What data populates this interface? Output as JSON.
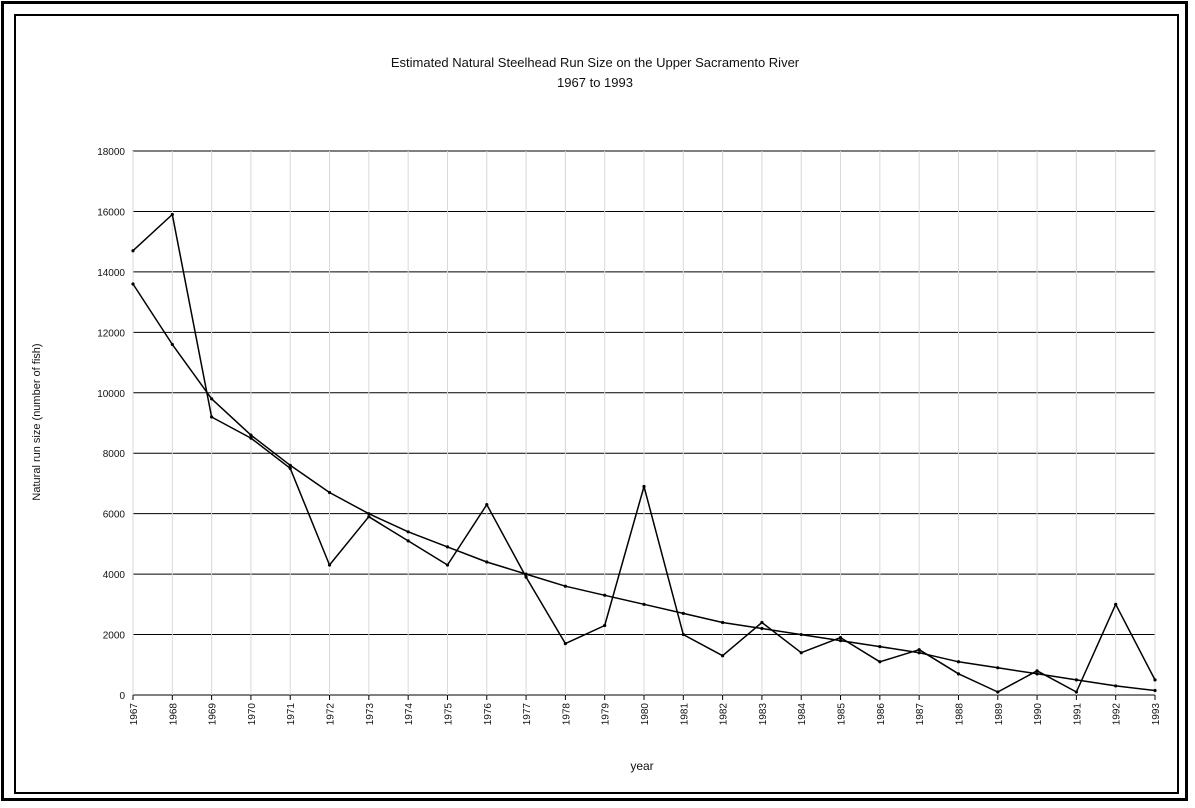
{
  "chart_data": {
    "type": "line",
    "title": "Estimated Natural Steelhead Run Size on the Upper Sacramento River",
    "subtitle": "1967 to 1993",
    "xlabel": "year",
    "ylabel": "Natural run size (number of fish)",
    "ylim": [
      0,
      18000
    ],
    "yticks": [
      0,
      2000,
      4000,
      6000,
      8000,
      10000,
      12000,
      14000,
      16000,
      18000
    ],
    "ytick_labels": [
      "0",
      "2000",
      "4000",
      "6000",
      "8000",
      "10000",
      "12000",
      "14000",
      "16000",
      "18000"
    ],
    "grid": true,
    "x": [
      "1967",
      "1968",
      "1969",
      "1970",
      "1971",
      "1972",
      "1973",
      "1974",
      "1975",
      "1976",
      "1977",
      "1978",
      "1979",
      "1980",
      "1981",
      "1982",
      "1983",
      "1984",
      "1985",
      "1986",
      "1987",
      "1988",
      "1989",
      "1990",
      "1991",
      "1992",
      "1993"
    ],
    "series": [
      {
        "values": [
          14700,
          15900,
          9200,
          8500,
          7500,
          4300,
          5900,
          5100,
          4300,
          6300,
          3900,
          1700,
          2300,
          6900,
          2000,
          1300,
          2400,
          1400,
          1900,
          1100,
          1500,
          700,
          100,
          800,
          100,
          3000,
          500
        ],
        "color": "#000000"
      },
      {
        "values": [
          13600,
          11600,
          9800,
          8600,
          7600,
          6700,
          6000,
          5400,
          4900,
          4400,
          4000,
          3600,
          3300,
          3000,
          2700,
          2400,
          2200,
          2000,
          1800,
          1600,
          1400,
          1100,
          900,
          700,
          500,
          300,
          150
        ],
        "color": "#000000"
      }
    ]
  }
}
